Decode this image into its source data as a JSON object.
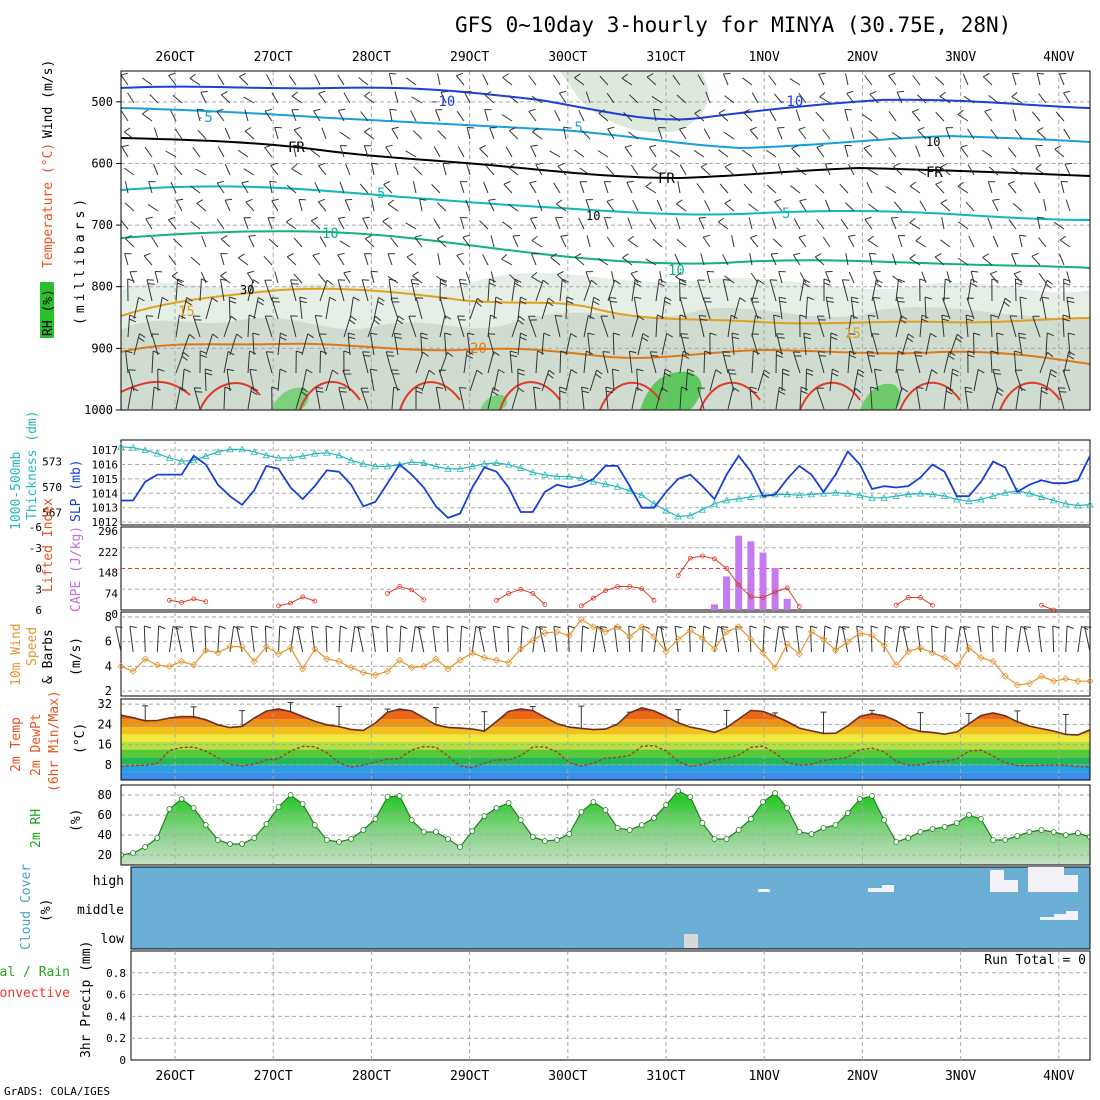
{
  "title": "GFS 0~10day 3-hourly for MINYA (30.75E, 28N)",
  "credit": "GrADS: COLA/IGES",
  "chart_data": {
    "type": "meteogram",
    "run_steps": 81,
    "date_labels": [
      "26OCT",
      "27OCT",
      "28OCT",
      "29OCT",
      "30OCT",
      "31OCT",
      "1NOV",
      "2NOV",
      "3NOV",
      "4NOV"
    ],
    "panels": [
      {
        "id": "upper_air",
        "type": "contour",
        "ylabels": [
          "Wind (m/s)",
          "Temperature (°C)",
          "RH (%)",
          "(millibars)"
        ],
        "yticks": [
          "500",
          "600",
          "700",
          "800",
          "900",
          "1000"
        ],
        "ylim": [
          1000,
          450
        ],
        "temperature_contours": [
          {
            "label": "-10",
            "color": "#1e3fd8"
          },
          {
            "label": "-5",
            "color": "#16a0dc"
          },
          {
            "label": "FR",
            "color": "#000000"
          },
          {
            "label": "5",
            "color": "#10b8b8"
          },
          {
            "label": "10",
            "color": "#12b088"
          },
          {
            "label": "15",
            "color": "#e0a020"
          },
          {
            "label": "20",
            "color": "#e07818"
          }
        ],
        "rh_labels": [
          "10",
          "30"
        ]
      },
      {
        "id": "thickness_slp",
        "type": "line",
        "ylabels_left": [
          "1000-500mb",
          "Thickness (dm)"
        ],
        "ylabel_right": "SLP (mb)",
        "yticks_left": [
          "573",
          "570",
          "567"
        ],
        "yticks_right": [
          "1017",
          "1016",
          "1015",
          "1014",
          "1013",
          "1012"
        ],
        "ylim": [
          1012,
          1017.5
        ],
        "series": [
          {
            "name": "SLP (mb)",
            "color": "#1a3fd6",
            "values": [
              1013.5,
              1013.5,
              1014.8,
              1015.3,
              1015.3,
              1015.3,
              1016.6,
              1016.0,
              1014.6,
              1013.8,
              1013.2,
              1014.2,
              1015.9,
              1015.7,
              1014.4,
              1013.6,
              1014.5,
              1015.6,
              1015.5,
              1014.6,
              1013.1,
              1013.4,
              1014.7,
              1016.0,
              1015.3,
              1014.4,
              1013.1,
              1012.3,
              1012.6,
              1014.4,
              1015.8,
              1015.5,
              1014.4,
              1012.7,
              1012.7,
              1014.1,
              1014.6,
              1014.4,
              1014.6,
              1015.0,
              1015.9,
              1015.9,
              1014.5,
              1013.0,
              1013.0,
              1014.1,
              1015.0,
              1015.3,
              1014.5,
              1013.6,
              1015.3,
              1016.6,
              1015.5,
              1013.8,
              1013.9,
              1015.0,
              1015.9,
              1015.3,
              1014.1,
              1015.3,
              1016.9,
              1016.0,
              1014.3,
              1014.5,
              1014.4,
              1014.5,
              1015.1,
              1016.0,
              1015.5,
              1013.8,
              1013.8,
              1014.8,
              1016.2,
              1015.8,
              1014.1,
              1014.6,
              1014.9,
              1014.7,
              1014.7,
              1014.9,
              1016.6
            ]
          },
          {
            "name": "1000-500mb Thickness (dm)",
            "color": "#26b8b8",
            "values": [
              574.7,
              574.6,
              574.3,
              573.9,
              573.4,
              573.0,
              573.1,
              573.6,
              574.1,
              574.4,
              574.4,
              574.1,
              573.7,
              573.4,
              573.4,
              573.6,
              573.9,
              574.0,
              573.7,
              573.1,
              572.7,
              572.4,
              572.4,
              572.6,
              572.9,
              572.8,
              572.4,
              572.1,
              572.1,
              572.4,
              572.7,
              572.8,
              572.6,
              572.2,
              571.7,
              571.4,
              571.2,
              571.2,
              571.0,
              570.6,
              570.3,
              570.0,
              569.5,
              569.0,
              568.0,
              567.2,
              566.5,
              566.6,
              567.3,
              568.0,
              568.4,
              568.6,
              568.8,
              569.0,
              569.1,
              569.1,
              569.0,
              569.1,
              569.2,
              569.3,
              569.2,
              569.0,
              568.7,
              568.7,
              568.9,
              569.1,
              569.2,
              569.1,
              568.9,
              568.5,
              568.3,
              568.5,
              568.9,
              569.3,
              569.5,
              569.2,
              568.8,
              568.4,
              568.0,
              567.8,
              567.9
            ]
          }
        ]
      },
      {
        "id": "lifted_cape",
        "type": "line+bar",
        "ylabel_left": "Lifted Index",
        "ylabel_right": "CAPE (J/kg)",
        "yticks_left": [
          "-6",
          "-3",
          "0",
          "3",
          "6"
        ],
        "yticks_right": [
          "296",
          "222",
          "148",
          "74",
          "0"
        ],
        "lifted_index": [
          null,
          null,
          null,
          null,
          null,
          null,
          null,
          null,
          null,
          null,
          null,
          null,
          null,
          null,
          null,
          null,
          null,
          null,
          null,
          null,
          null,
          null,
          null,
          null,
          null,
          null,
          null,
          null,
          null,
          null,
          null,
          null,
          null,
          null,
          null,
          null,
          null,
          null,
          null,
          null,
          null,
          null,
          null,
          null,
          null,
          null,
          null,
          null,
          null,
          null,
          null,
          null,
          null,
          null,
          null,
          null,
          null,
          null,
          null,
          null,
          null,
          null,
          null,
          null,
          null,
          null,
          null,
          null,
          null,
          null,
          null,
          null,
          null,
          null,
          null,
          null,
          null,
          null,
          null,
          null,
          null
        ],
        "lifted_index_points": [
          [
            4,
            4.6
          ],
          [
            5,
            4.9
          ],
          [
            6,
            4.4
          ],
          [
            7,
            4.8
          ],
          [
            13,
            5.4
          ],
          [
            14,
            5.0
          ],
          [
            15,
            4.1
          ],
          [
            16,
            4.7
          ],
          [
            22,
            3.6
          ],
          [
            23,
            2.6
          ],
          [
            24,
            3.1
          ],
          [
            25,
            4.5
          ],
          [
            31,
            4.6
          ],
          [
            32,
            3.6
          ],
          [
            33,
            3.0
          ],
          [
            34,
            3.6
          ],
          [
            35,
            5.2
          ],
          [
            38,
            5.4
          ],
          [
            39,
            4.3
          ],
          [
            40,
            3.2
          ],
          [
            41,
            2.6
          ],
          [
            42,
            2.6
          ],
          [
            43,
            2.9
          ],
          [
            44,
            4.6
          ],
          [
            46,
            1.0
          ],
          [
            47,
            -1.5
          ],
          [
            48,
            -1.8
          ],
          [
            49,
            -1.4
          ],
          [
            50,
            0.0
          ],
          [
            51,
            2.4
          ],
          [
            52,
            4.1
          ],
          [
            53,
            4.2
          ],
          [
            54,
            3.4
          ],
          [
            55,
            2.8
          ],
          [
            56,
            5.5
          ],
          [
            64,
            5.3
          ],
          [
            65,
            4.2
          ],
          [
            66,
            4.2
          ],
          [
            67,
            5.3
          ],
          [
            76,
            5.3
          ],
          [
            77,
            6.0
          ]
        ],
        "cape_points": [
          [
            49,
            20
          ],
          [
            50,
            120
          ],
          [
            51,
            265
          ],
          [
            52,
            245
          ],
          [
            53,
            205
          ],
          [
            54,
            150
          ],
          [
            55,
            40
          ]
        ]
      },
      {
        "id": "wind10m",
        "type": "line",
        "ylabels": [
          "10m Wind",
          "Speed",
          "& Barbs",
          "(m/s)"
        ],
        "yticks": [
          "8",
          "6",
          "4",
          "2"
        ],
        "ylim": [
          2,
          8
        ],
        "color": "#e39532",
        "values": [
          4.0,
          3.6,
          4.6,
          4.1,
          4.0,
          4.4,
          4.1,
          5.3,
          5.1,
          5.6,
          5.6,
          4.4,
          5.6,
          5.0,
          5.5,
          3.8,
          5.4,
          4.6,
          4.4,
          3.9,
          3.5,
          3.3,
          3.6,
          4.5,
          3.9,
          4.0,
          4.6,
          3.8,
          4.5,
          5.1,
          4.7,
          4.5,
          4.3,
          5.4,
          6.1,
          6.7,
          6.8,
          6.5,
          7.8,
          7.2,
          6.8,
          7.2,
          6.4,
          7.2,
          6.4,
          5.2,
          6.2,
          6.9,
          6.3,
          5.4,
          6.8,
          7.2,
          6.2,
          5.1,
          3.9,
          5.8,
          5.0,
          6.8,
          6.2,
          5.3,
          6.0,
          6.7,
          6.5,
          5.7,
          4.1,
          5.2,
          5.5,
          5.1,
          4.7,
          4.0,
          5.5,
          4.7,
          4.4,
          3.2,
          2.5,
          2.6,
          3.2,
          2.8,
          3.0,
          2.8,
          2.8
        ]
      },
      {
        "id": "temp_dewpt",
        "type": "area",
        "ylabels": [
          "2m Temp",
          "2m DewPt",
          "(6hr Min/Max)",
          "(°C)"
        ],
        "yticks": [
          "32",
          "24",
          "16",
          "8"
        ],
        "ylim": [
          2,
          34
        ],
        "temp": [
          27.6,
          26.6,
          25.4,
          25.5,
          26.5,
          27.1,
          27.0,
          25.8,
          23.8,
          22.7,
          23.2,
          26.5,
          29.2,
          30.1,
          29.0,
          27.1,
          25.2,
          23.8,
          23.1,
          22.0,
          21.6,
          24.5,
          28.8,
          30.0,
          29.3,
          26.6,
          23.8,
          22.8,
          22.5,
          22.1,
          21.3,
          25.1,
          29.1,
          30.1,
          29.4,
          26.8,
          24.3,
          22.9,
          22.4,
          21.9,
          22.1,
          24.1,
          28.6,
          30.5,
          29.3,
          27.1,
          24.6,
          22.9,
          22.0,
          20.8,
          22.7,
          26.1,
          29.5,
          29.1,
          27.3,
          25.1,
          22.5,
          21.4,
          20.4,
          20.5,
          23.4,
          27.1,
          28.2,
          27.4,
          25.4,
          22.5,
          21.2,
          20.8,
          20.1,
          21.0,
          24.2,
          27.5,
          28.5,
          27.4,
          25.0,
          23.3,
          22.3,
          21.3,
          20.0,
          19.8,
          21.8
        ],
        "dewpt": [
          7.4,
          7.7,
          7.8,
          8.5,
          13.7,
          14.8,
          15.0,
          13.4,
          10.8,
          8.1,
          7.6,
          8.3,
          10.0,
          10.4,
          13.4,
          15.3,
          15.1,
          12.8,
          8.8,
          7.1,
          7.9,
          9.1,
          10.3,
          10.4,
          13.9,
          15.2,
          15.0,
          11.5,
          7.5,
          6.9,
          8.7,
          9.9,
          9.9,
          11.6,
          15.0,
          15.1,
          13.1,
          8.8,
          7.5,
          8.7,
          10.7,
          10.9,
          11.7,
          15.3,
          15.6,
          13.5,
          9.3,
          7.4,
          8.1,
          9.7,
          10.6,
          11.8,
          14.9,
          15.4,
          12.7,
          8.9,
          7.8,
          8.2,
          9.7,
          10.3,
          11.0,
          14.0,
          14.6,
          13.1,
          9.5,
          7.8,
          8.0,
          9.2,
          9.4,
          10.3,
          13.4,
          13.8,
          11.5,
          8.8,
          7.7,
          7.6,
          7.8,
          7.9,
          7.8,
          7.3,
          7.1
        ],
        "max_tmax": [
          31.3,
          30.9,
          29.4,
          32.6,
          31.0,
          30.0,
          30.6,
          29.0,
          31.0,
          31.2,
          28.8,
          29.8,
          29.5,
          28.5,
          28.8,
          29.5,
          28.6,
          28.3,
          29.3,
          27.9
        ],
        "color_bands": [
          "#3a8ee8",
          "#2aa0e0",
          "#24b854",
          "#58c838",
          "#b4e040",
          "#eee840",
          "#f4c020",
          "#f09010",
          "#e86818",
          "#d84010",
          "#c02808"
        ]
      },
      {
        "id": "rh2m",
        "type": "area",
        "ylabels": [
          "2m RH",
          "(%)"
        ],
        "yticks": [
          "80",
          "60",
          "40",
          "20"
        ],
        "ylim": [
          10,
          90
        ],
        "values": [
          20,
          22,
          28,
          37,
          66,
          76,
          67,
          50,
          35,
          31,
          31,
          37,
          51,
          68,
          80,
          71,
          50,
          35,
          33,
          36,
          45,
          56,
          78,
          79,
          55,
          43,
          43,
          36,
          28,
          44,
          59,
          67,
          72,
          55,
          38,
          34,
          35,
          41,
          63,
          73,
          65,
          47,
          45,
          50,
          57,
          70,
          84,
          78,
          52,
          36,
          36,
          45,
          56,
          73,
          82,
          67,
          43,
          41,
          47,
          50,
          62,
          76,
          79,
          55,
          33,
          37,
          43,
          46,
          48,
          52,
          60,
          56,
          35,
          35,
          39,
          43,
          45,
          43,
          40,
          42,
          38
        ]
      },
      {
        "id": "cloud",
        "type": "bars",
        "ylabels": [
          "Cloud Cover",
          "(%)"
        ],
        "ytick_labels": [
          "high",
          "middle",
          "low"
        ]
      },
      {
        "id": "precip",
        "type": "bar",
        "ylabels": [
          "Total / Rain",
          "Convective",
          "3hr Precip (mm)"
        ],
        "yticks": [
          "0.8",
          "0.6",
          "0.4",
          "0.2",
          "0"
        ],
        "ylim": [
          0,
          1.0
        ],
        "run_total": "Run Total = 0",
        "values": []
      }
    ]
  }
}
